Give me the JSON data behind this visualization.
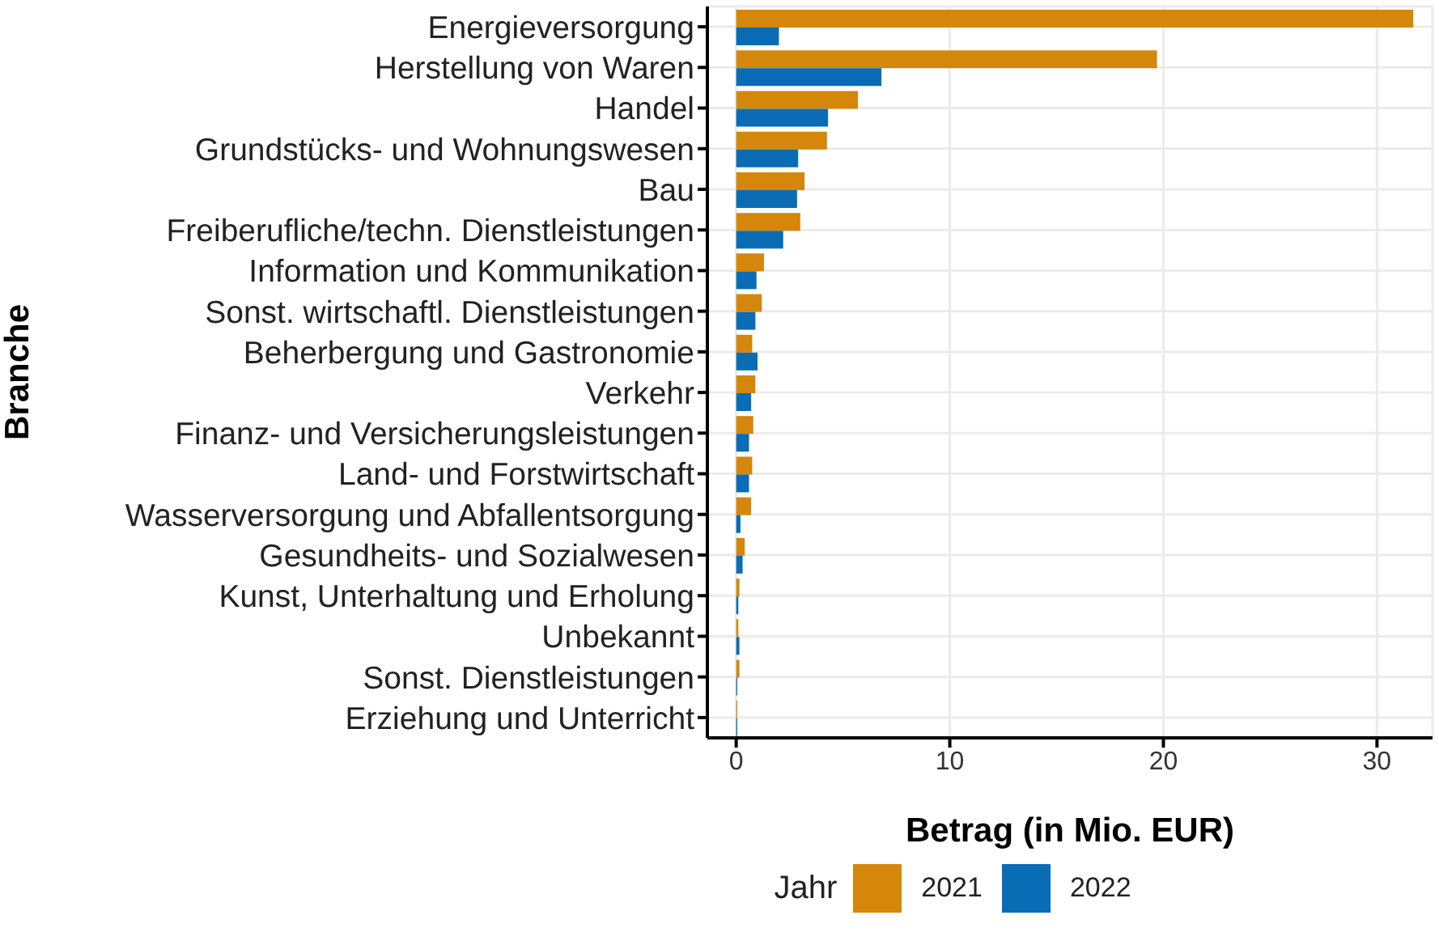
{
  "chart_data": {
    "type": "bar",
    "orientation": "horizontal",
    "xlabel": "Betrag (in Mio. EUR)",
    "ylabel": "Branche",
    "legend_title": "Jahr",
    "categories": [
      "Energieversorgung",
      "Herstellung von Waren",
      "Handel",
      "Grundstücks- und Wohnungswesen",
      "Bau",
      "Freiberufliche/techn. Dienstleistungen",
      "Information und Kommunikation",
      "Sonst. wirtschaftl. Dienstleistungen",
      "Beherbergung und Gastronomie",
      "Verkehr",
      "Finanz- und Versicherungsleistungen",
      "Land- und Forstwirtschaft",
      "Wasserversorgung und Abfallentsorgung",
      "Gesundheits- und Sozialwesen",
      "Kunst, Unterhaltung und Erholung",
      "Unbekannt",
      "Sonst. Dienstleistungen",
      "Erziehung und Unterricht"
    ],
    "series": [
      {
        "name": "2021",
        "color": "#d4870a",
        "values": [
          31.7,
          19.7,
          5.7,
          4.25,
          3.2,
          3.0,
          1.3,
          1.2,
          0.75,
          0.9,
          0.8,
          0.75,
          0.7,
          0.4,
          0.15,
          0.1,
          0.15,
          0.05
        ]
      },
      {
        "name": "2022",
        "color": "#0a6cb4",
        "values": [
          2.0,
          6.8,
          4.3,
          2.9,
          2.85,
          2.2,
          0.95,
          0.9,
          1.0,
          0.7,
          0.6,
          0.6,
          0.2,
          0.3,
          0.1,
          0.15,
          0.05,
          0.05
        ]
      }
    ],
    "xlim": [
      -1.35,
      32.6
    ],
    "xticks": [
      0,
      10,
      20,
      30
    ],
    "grid": true,
    "legend": "bottom"
  }
}
